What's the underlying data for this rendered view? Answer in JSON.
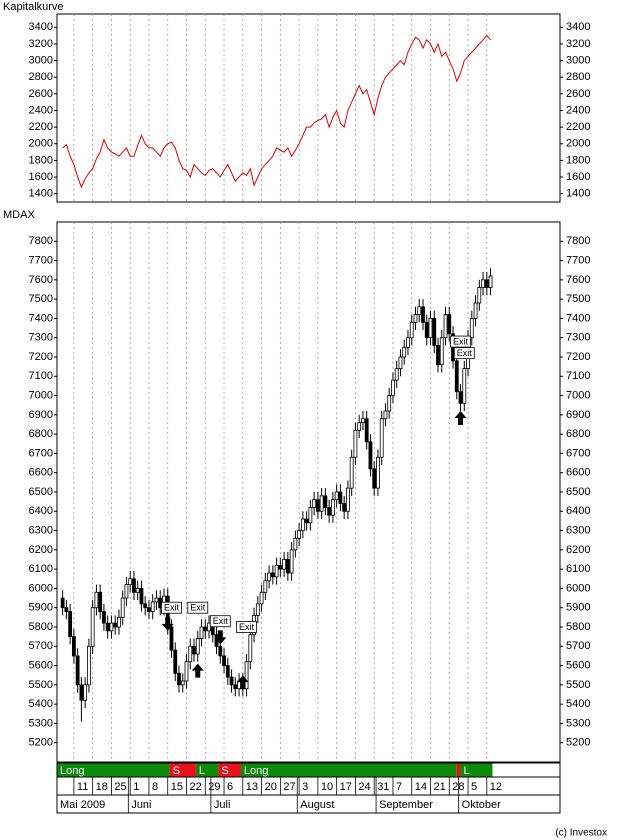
{
  "chart_data": [
    {
      "type": "line",
      "title": "Kapitalkurve",
      "color": "#e00000",
      "ylim": [
        1300,
        3560
      ],
      "yticks": [
        1400,
        1600,
        1800,
        2000,
        2200,
        2400,
        2600,
        2800,
        3000,
        3200,
        3400
      ],
      "values": [
        1950,
        1990,
        1850,
        1750,
        1600,
        1480,
        1580,
        1650,
        1700,
        1820,
        1900,
        2050,
        1950,
        1900,
        1880,
        1850,
        1900,
        1950,
        1850,
        1850,
        1980,
        2100,
        2000,
        1950,
        1950,
        1900,
        1850,
        1950,
        2000,
        2020,
        1950,
        1800,
        1700,
        1680,
        1600,
        1750,
        1700,
        1650,
        1620,
        1680,
        1700,
        1650,
        1600,
        1680,
        1750,
        1650,
        1550,
        1600,
        1650,
        1620,
        1700,
        1500,
        1600,
        1700,
        1750,
        1800,
        1850,
        1950,
        1920,
        1900,
        1950,
        1850,
        1920,
        2000,
        2100,
        2200,
        2200,
        2250,
        2280,
        2300,
        2350,
        2200,
        2320,
        2400,
        2250,
        2200,
        2400,
        2500,
        2600,
        2700,
        2600,
        2650,
        2500,
        2350,
        2550,
        2700,
        2800,
        2850,
        2900,
        2950,
        3000,
        2950,
        3100,
        3200,
        3280,
        3250,
        3150,
        3250,
        3200,
        3100,
        3200,
        3050,
        3100,
        3000,
        2900,
        2750,
        2850,
        3000,
        3050,
        3100,
        3150,
        3200,
        3250,
        3300,
        3250
      ]
    },
    {
      "type": "candlestick",
      "title": "MDAX",
      "color": "#000000",
      "ylim": [
        5100,
        7900
      ],
      "yticks": [
        5200,
        5300,
        5400,
        5500,
        5600,
        5700,
        5800,
        5900,
        6000,
        6100,
        6200,
        6300,
        6400,
        6500,
        6600,
        6700,
        6800,
        6900,
        7000,
        7100,
        7200,
        7300,
        7400,
        7500,
        7600,
        7700,
        7800
      ],
      "xlim": [
        -1.5,
        132.5
      ],
      "categories": [
        null,
        null,
        null,
        "11",
        null,
        null,
        null,
        null,
        "18",
        null,
        null,
        null,
        null,
        "25",
        null,
        null,
        null,
        null,
        "1",
        null,
        null,
        null,
        null,
        "8",
        null,
        null,
        null,
        null,
        "15",
        null,
        null,
        null,
        null,
        "22",
        null,
        null,
        null,
        null,
        "29",
        null,
        null,
        null,
        null,
        "6",
        null,
        null,
        null,
        null,
        "13",
        null,
        null,
        null,
        null,
        "20",
        null,
        null,
        null,
        null,
        "27",
        null,
        null,
        null,
        null,
        "3",
        null,
        null,
        null,
        null,
        "10",
        null,
        null,
        null,
        null,
        "17",
        null,
        null,
        null,
        null,
        "24",
        null,
        null,
        null,
        null,
        "31",
        null,
        null,
        null,
        null,
        "7",
        null,
        null,
        null,
        null,
        "14",
        null,
        null,
        null,
        null,
        "21",
        null,
        null,
        null,
        null,
        "28",
        null,
        null,
        null,
        null,
        "5",
        null,
        null,
        null,
        null,
        "12",
        null
      ],
      "month_ticks": [
        {
          "value": -1.5,
          "label": "Mai 2009"
        },
        {
          "value": 17.5,
          "label": "Juni"
        },
        {
          "value": 39.5,
          "label": "Juli"
        },
        {
          "value": 62.5,
          "label": "August"
        },
        {
          "value": 83.5,
          "label": "September"
        },
        {
          "value": 105.5,
          "label": "Oktober"
        }
      ],
      "open": [
        5950,
        5900,
        5880,
        5750,
        5650,
        5500,
        5420,
        5500,
        5700,
        5900,
        5980,
        5880,
        5820,
        5780,
        5820,
        5800,
        5850,
        5950,
        6020,
        6050,
        5980,
        6000,
        5920,
        5900,
        5880,
        5930,
        5950,
        5900,
        5960,
        5800,
        5680,
        5560,
        5500,
        5520,
        5620,
        5700,
        5660,
        5740,
        5800,
        5780,
        5820,
        5760,
        5700,
        5650,
        5600,
        5540,
        5500,
        5480,
        5520,
        5480,
        5620,
        5760,
        5860,
        5920,
        5980,
        6040,
        6080,
        6060,
        6120,
        6100,
        6150,
        6080,
        6200,
        6260,
        6300,
        6360,
        6340,
        6420,
        6460,
        6400,
        6480,
        6420,
        6380,
        6460,
        6500,
        6440,
        6400,
        6520,
        6680,
        6820,
        6860,
        6880,
        6760,
        6620,
        6520,
        6680,
        6880,
        6920,
        7000,
        7080,
        7140,
        7200,
        7250,
        7300,
        7380,
        7420,
        7460,
        7380,
        7300,
        7400,
        7260,
        7160,
        7300,
        7420,
        7320,
        7180,
        7020,
        6960,
        7140,
        7300,
        7400,
        7480,
        7560,
        7600,
        7560
      ],
      "high": [
        5990,
        5940,
        5920,
        5790,
        5690,
        5540,
        5540,
        5740,
        5940,
        6020,
        6020,
        5920,
        5860,
        5860,
        5860,
        5890,
        5990,
        6060,
        6090,
        6090,
        6040,
        6040,
        5960,
        5940,
        5970,
        5990,
        5990,
        6000,
        6000,
        5840,
        5720,
        5600,
        5560,
        5660,
        5740,
        5740,
        5780,
        5840,
        5840,
        5860,
        5860,
        5800,
        5740,
        5690,
        5640,
        5580,
        5540,
        5560,
        5560,
        5660,
        5800,
        5900,
        5960,
        6020,
        6080,
        6120,
        6120,
        6160,
        6160,
        6190,
        6190,
        6240,
        6300,
        6340,
        6400,
        6400,
        6460,
        6500,
        6500,
        6520,
        6520,
        6460,
        6500,
        6540,
        6540,
        6480,
        6560,
        6720,
        6860,
        6900,
        6920,
        6920,
        6800,
        6660,
        6720,
        6920,
        6960,
        7040,
        7120,
        7180,
        7240,
        7290,
        7340,
        7420,
        7460,
        7500,
        7500,
        7420,
        7440,
        7440,
        7300,
        7340,
        7460,
        7460,
        7360,
        7220,
        7060,
        7180,
        7340,
        7440,
        7520,
        7600,
        7640,
        7640,
        7660
      ],
      "low": [
        5860,
        5840,
        5710,
        5610,
        5460,
        5310,
        5380,
        5460,
        5660,
        5860,
        5840,
        5780,
        5740,
        5740,
        5760,
        5760,
        5810,
        5910,
        5980,
        5940,
        5940,
        5880,
        5860,
        5840,
        5840,
        5890,
        5860,
        5860,
        5760,
        5640,
        5520,
        5460,
        5460,
        5480,
        5580,
        5620,
        5620,
        5700,
        5740,
        5740,
        5720,
        5660,
        5610,
        5560,
        5500,
        5460,
        5440,
        5440,
        5440,
        5440,
        5580,
        5720,
        5820,
        5880,
        5940,
        6000,
        6020,
        6020,
        6060,
        6060,
        6040,
        6040,
        6160,
        6220,
        6260,
        6300,
        6300,
        6380,
        6360,
        6360,
        6380,
        6340,
        6340,
        6420,
        6400,
        6360,
        6360,
        6480,
        6640,
        6780,
        6820,
        6720,
        6580,
        6480,
        6480,
        6640,
        6840,
        6880,
        6960,
        7040,
        7100,
        7160,
        7210,
        7260,
        7340,
        7380,
        7340,
        7260,
        7260,
        7220,
        7120,
        7120,
        7260,
        7280,
        7140,
        6980,
        6920,
        6920,
        7100,
        7260,
        7360,
        7440,
        7520,
        7520,
        7520
      ],
      "close": [
        5900,
        5880,
        5750,
        5650,
        5500,
        5420,
        5500,
        5700,
        5900,
        5980,
        5880,
        5820,
        5780,
        5820,
        5800,
        5850,
        5950,
        6020,
        6050,
        5980,
        6000,
        5920,
        5900,
        5880,
        5930,
        5950,
        5900,
        5960,
        5800,
        5680,
        5560,
        5500,
        5520,
        5620,
        5700,
        5660,
        5740,
        5800,
        5780,
        5820,
        5760,
        5700,
        5650,
        5600,
        5540,
        5500,
        5480,
        5520,
        5480,
        5620,
        5760,
        5860,
        5920,
        5980,
        6040,
        6080,
        6060,
        6120,
        6100,
        6150,
        6080,
        6200,
        6260,
        6300,
        6360,
        6340,
        6420,
        6460,
        6400,
        6480,
        6420,
        6380,
        6460,
        6500,
        6440,
        6400,
        6520,
        6680,
        6820,
        6860,
        6880,
        6760,
        6620,
        6520,
        6680,
        6880,
        6920,
        7000,
        7080,
        7140,
        7200,
        7250,
        7300,
        7380,
        7420,
        7460,
        7380,
        7300,
        7400,
        7260,
        7160,
        7300,
        7420,
        7320,
        7180,
        7020,
        6960,
        7140,
        7300,
        7400,
        7480,
        7560,
        7600,
        7560,
        7620
      ],
      "annotations": [
        {
          "label": "Exit",
          "x": 29,
          "y": 5900
        },
        {
          "label": "Exit",
          "x": 36,
          "y": 5900
        },
        {
          "label": "Exit",
          "x": 42,
          "y": 5830
        },
        {
          "label": "Exit",
          "x": 49,
          "y": 5800
        },
        {
          "label": "Exit",
          "x": 106,
          "y": 7280
        },
        {
          "label": "Exit",
          "x": 107,
          "y": 7220
        }
      ],
      "arrows": [
        {
          "x": 28,
          "y": 5780,
          "direction": "down"
        },
        {
          "x": 36,
          "y": 5610,
          "direction": "up"
        },
        {
          "x": 42,
          "y": 5710,
          "direction": "down"
        },
        {
          "x": 48,
          "y": 5550,
          "direction": "up"
        },
        {
          "x": 106,
          "y": 6920,
          "direction": "up"
        }
      ],
      "positions": [
        {
          "label": "Long",
          "start": -1.5,
          "end": 28.5,
          "color": "#0b8a0b"
        },
        {
          "label": "S",
          "start": 28.5,
          "end": 35.5,
          "color": "#e8101a"
        },
        {
          "label": "L",
          "start": 35.5,
          "end": 41.5,
          "color": "#0b8a0b"
        },
        {
          "label": "S",
          "start": 41.5,
          "end": 47.5,
          "color": "#e8101a"
        },
        {
          "label": "Long",
          "start": 47.5,
          "end": 105,
          "color": "#0b8a0b"
        },
        {
          "label": null,
          "start": 105,
          "end": 106,
          "color": "#e8101a"
        },
        {
          "label": "L",
          "start": 106,
          "end": 114.5,
          "color": "#0b8a0b"
        }
      ],
      "copyright": "(c) Investox"
    }
  ]
}
